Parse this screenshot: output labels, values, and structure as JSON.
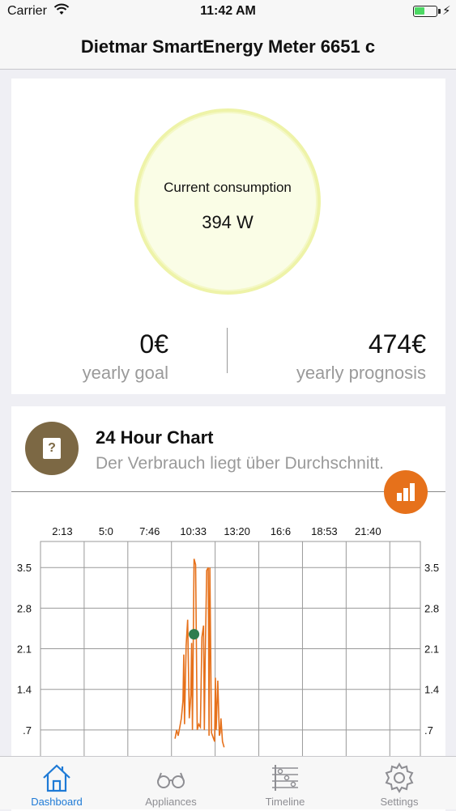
{
  "status_bar": {
    "carrier": "Carrier",
    "time": "11:42 AM"
  },
  "nav": {
    "title": "Dietmar SmartEnergy Meter 6651 c"
  },
  "consumption": {
    "label": "Current consumption",
    "value": "394 W"
  },
  "stats": {
    "goal_value": "0€",
    "goal_label": "yearly goal",
    "prognosis_value": "474€",
    "prognosis_label": "yearly prognosis"
  },
  "chart_card": {
    "icon": "question-icon",
    "title": "24 Hour Chart",
    "subtitle": "Der Verbrauch liegt über Durchschnitt.",
    "button_icon": "bar-chart-icon"
  },
  "colors": {
    "accent": "#e6711b",
    "brand_brown": "#7c6844",
    "tab_active": "#1e7ad6",
    "marker": "#2e7d4f",
    "gauge_ring": "#eef3a8"
  },
  "chart_data": {
    "type": "line",
    "x_tick_labels": [
      "2:13",
      "5:0",
      "7:46",
      "10:33",
      "13:20",
      "16:6",
      "18:53",
      "21:40"
    ],
    "y_tick_labels": [
      "3.5",
      "2.8",
      "2.1",
      "1.4",
      ".7"
    ],
    "y_ticks": [
      3.5,
      2.8,
      2.1,
      1.4,
      0.7
    ],
    "ylim": [
      0,
      3.95
    ],
    "x_hours": [
      0,
      24
    ],
    "grid": true,
    "series": [
      {
        "color": "#e6711b",
        "x": [
          8.5,
          8.6,
          8.7,
          8.8,
          8.9,
          9.0,
          9.05,
          9.1,
          9.2,
          9.3,
          9.4,
          9.5,
          9.55,
          9.6,
          9.7,
          9.8,
          9.9,
          10.0,
          10.1,
          10.2,
          10.3,
          10.35,
          10.4,
          10.5,
          10.6,
          10.65,
          10.7,
          10.8,
          11.0,
          11.05,
          11.1,
          11.2,
          11.3,
          11.35,
          11.4,
          11.5,
          11.6
        ],
        "y": [
          0.55,
          0.7,
          0.6,
          0.75,
          0.9,
          1.2,
          2.0,
          0.8,
          2.15,
          2.6,
          0.9,
          1.3,
          2.2,
          0.7,
          3.65,
          3.55,
          0.7,
          0.8,
          0.75,
          2.3,
          2.5,
          0.7,
          1.8,
          3.45,
          3.5,
          0.6,
          3.5,
          0.65,
          0.5,
          1.6,
          0.7,
          1.55,
          0.6,
          0.65,
          0.9,
          0.5,
          0.4
        ]
      }
    ],
    "marker": {
      "x": 9.7,
      "y": 2.35
    }
  },
  "tabs": [
    {
      "label": "Dashboard",
      "icon": "house-icon",
      "active": true
    },
    {
      "label": "Appliances",
      "icon": "glasses-icon",
      "active": false
    },
    {
      "label": "Timeline",
      "icon": "timeline-icon",
      "active": false
    },
    {
      "label": "Settings",
      "icon": "gear-icon",
      "active": false
    }
  ]
}
